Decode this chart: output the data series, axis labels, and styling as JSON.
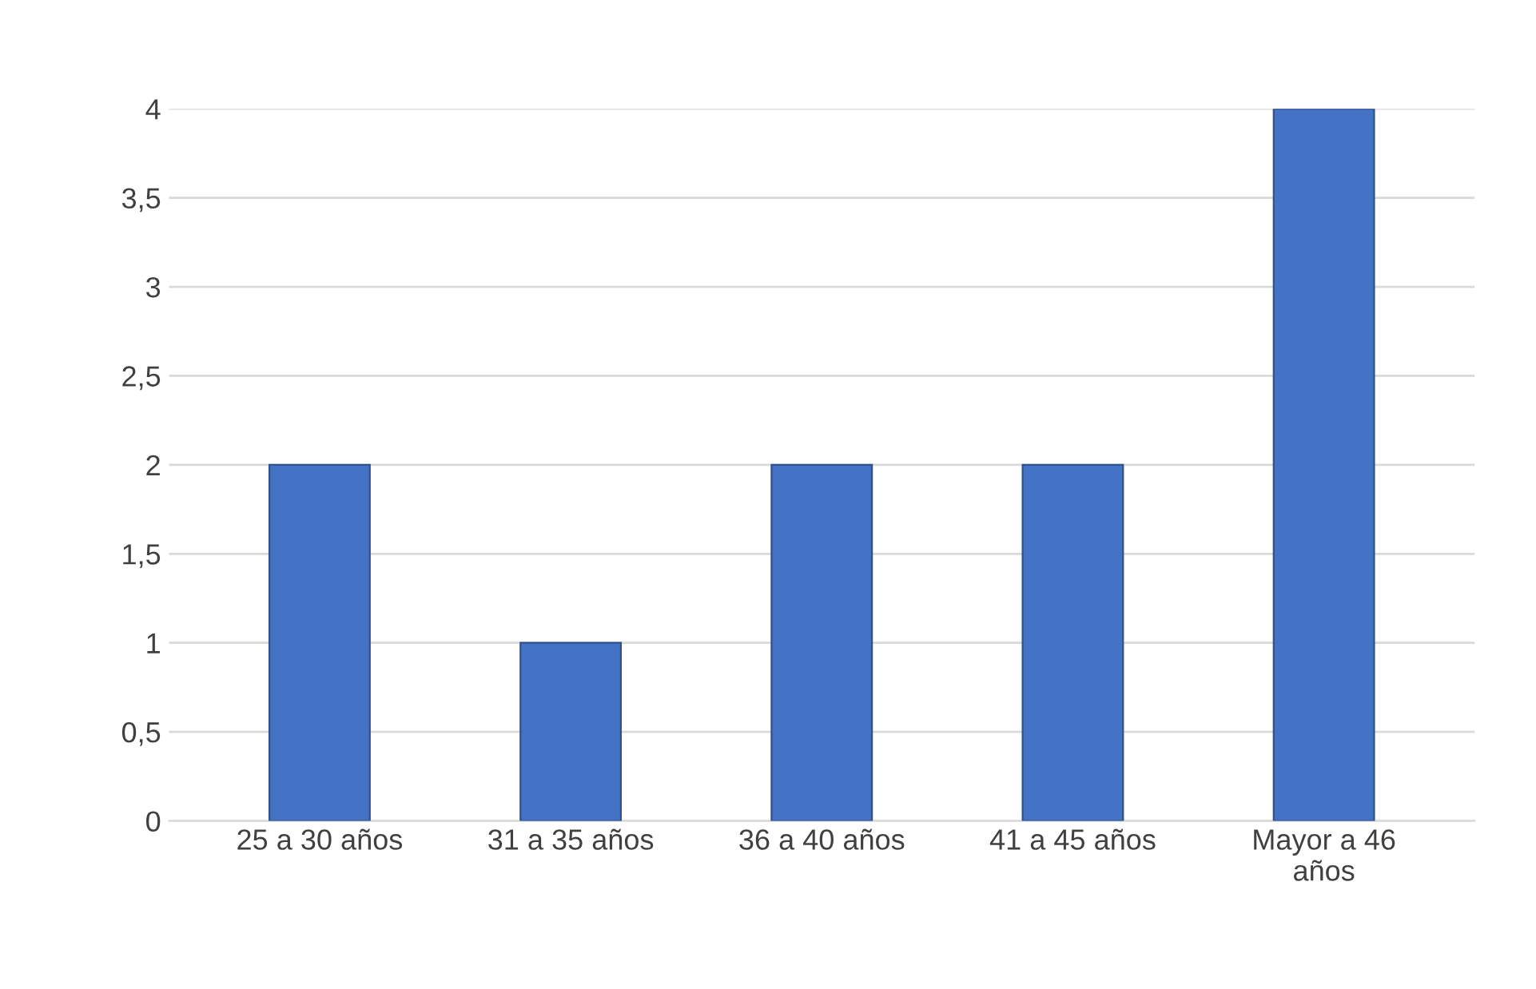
{
  "chart_data": {
    "type": "bar",
    "categories": [
      "25 a 30 años",
      "31 a 35 años",
      "36 a 40 años",
      "41 a 45 años",
      "Mayor a 46 años"
    ],
    "values": [
      2,
      1,
      2,
      2,
      4
    ],
    "color": "#4472c4",
    "ylim": [
      0,
      4
    ],
    "yticks": [
      0,
      {
        "value": 0.5,
        "label": "0,5"
      },
      1,
      {
        "value": 1.5,
        "label": "1,5"
      },
      2,
      {
        "value": 2.5,
        "label": "2,5"
      },
      3,
      {
        "value": 3.5,
        "label": "3,5"
      },
      4
    ],
    "grid": "y"
  }
}
